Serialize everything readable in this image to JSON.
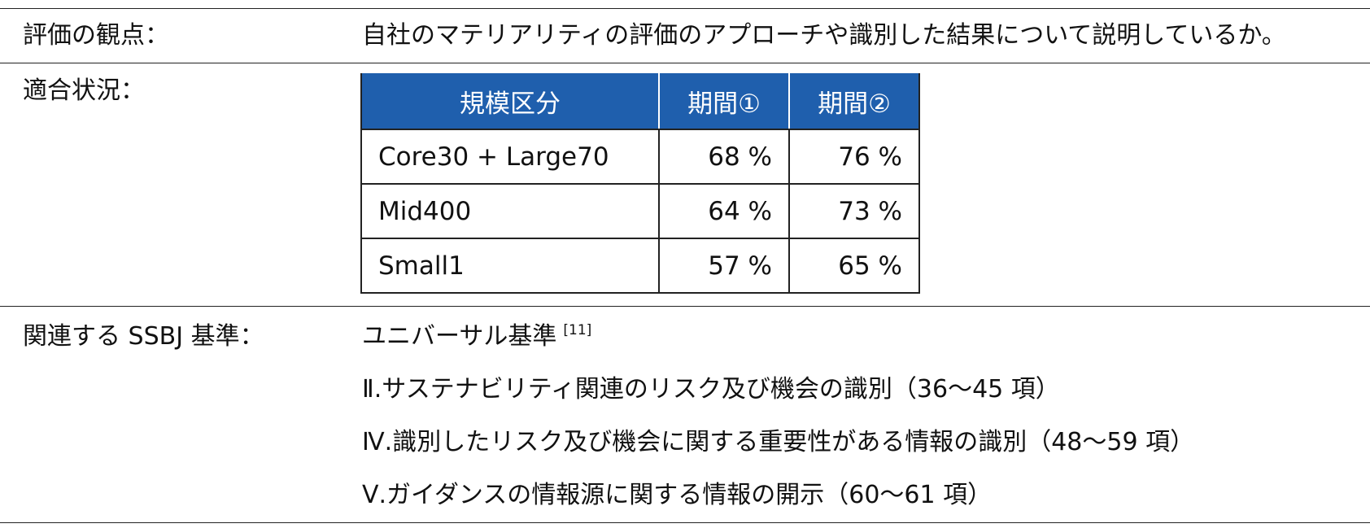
{
  "criteria": {
    "label": "評価の観点：",
    "text": "自社のマテリアリティの評価のアプローチや識別した結果について説明しているか。"
  },
  "status": {
    "label": "適合状況：",
    "table": {
      "headers": [
        "規模区分",
        "期間①",
        "期間②"
      ],
      "rows": [
        {
          "category": "Core30 + Large70",
          "period1": "68 %",
          "period2": "76 %"
        },
        {
          "category": "Mid400",
          "period1": "64 %",
          "period2": "73 %"
        },
        {
          "category": "Small1",
          "period1": "57 %",
          "period2": "65 %"
        }
      ]
    },
    "header_color": "#1f5fad"
  },
  "ssbj": {
    "label": "関連する SSBJ 基準：",
    "standard": "ユニバーサル基準",
    "reference": "[11]",
    "items": [
      "Ⅱ.サステナビリティ関連のリスク及び機会の識別（36～45 項）",
      "Ⅳ.識別したリスク及び機会に関する重要性がある情報の識別（48～59 項）",
      "Ⅴ.ガイダンスの情報源に関する情報の開示（60～61 項）"
    ]
  }
}
